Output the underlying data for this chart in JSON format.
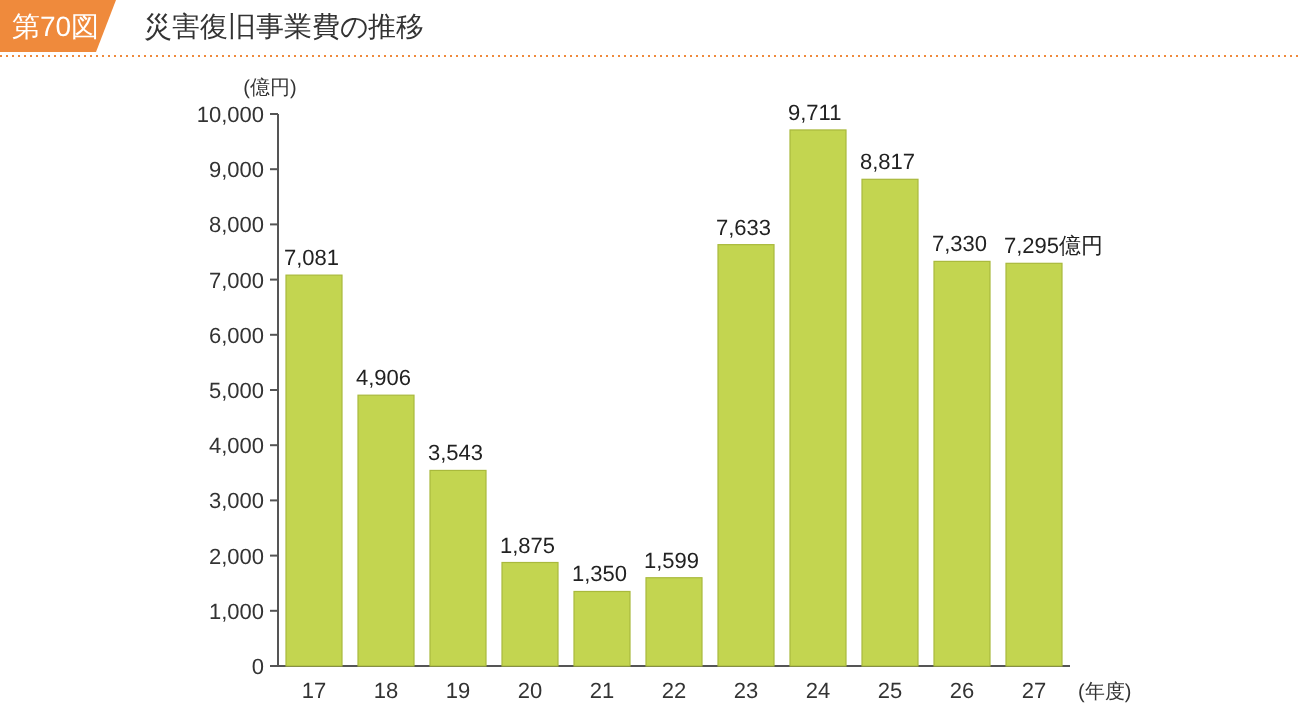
{
  "chart_data": {
    "type": "bar",
    "title": "災害復旧事業費の推移",
    "annotations": [
      "第70図"
    ],
    "ylabel": "(億円)",
    "xlabel": "(年度)",
    "categories": [
      "17",
      "18",
      "19",
      "20",
      "21",
      "22",
      "23",
      "24",
      "25",
      "26",
      "27"
    ],
    "values": [
      7081,
      4906,
      3543,
      1875,
      1350,
      1599,
      7633,
      9711,
      8817,
      7330,
      7295
    ],
    "value_labels": [
      "7,081",
      "4,906",
      "3,543",
      "1,875",
      "1,350",
      "1,599",
      "7,633",
      "9,711",
      "8,817",
      "7,330",
      "7,295億円"
    ],
    "color": "#c3d550",
    "ylim": [
      0,
      10000
    ],
    "yticks": [
      {
        "value": 0,
        "label": "0"
      },
      {
        "value": 1000,
        "label": "1,000"
      },
      {
        "value": 2000,
        "label": "2,000"
      },
      {
        "value": 3000,
        "label": "3,000"
      },
      {
        "value": 4000,
        "label": "4,000"
      },
      {
        "value": 5000,
        "label": "5,000"
      },
      {
        "value": 6000,
        "label": "6,000"
      },
      {
        "value": 7000,
        "label": "7,000"
      },
      {
        "value": 8000,
        "label": "8,000"
      },
      {
        "value": 9000,
        "label": "9,000"
      },
      {
        "value": 10000,
        "label": "10,000"
      }
    ],
    "grid": false
  }
}
